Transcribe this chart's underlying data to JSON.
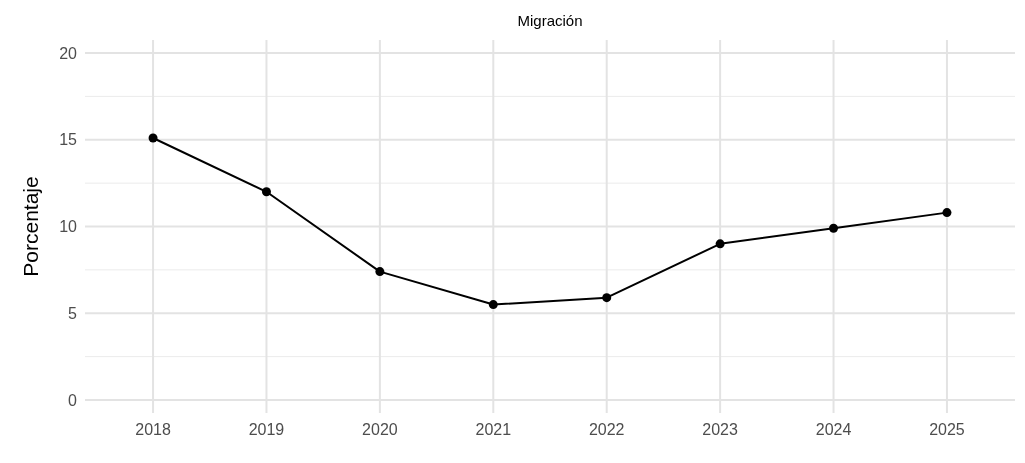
{
  "chart_data": {
    "type": "line",
    "title": "Migración",
    "ylabel": "Porcentaje",
    "categories": [
      "2018",
      "2019",
      "2020",
      "2021",
      "2022",
      "2023",
      "2024",
      "2025"
    ],
    "series": [
      {
        "color": "#000000",
        "values": [
          15.1,
          12.0,
          7.4,
          5.5,
          5.9,
          9.0,
          9.9,
          10.8
        ]
      }
    ],
    "ylim": [
      -0.75,
      20.75
    ],
    "yticks": [
      0,
      5,
      10,
      15,
      20
    ],
    "grid": true,
    "marker": "circle",
    "line_style": "solid"
  }
}
